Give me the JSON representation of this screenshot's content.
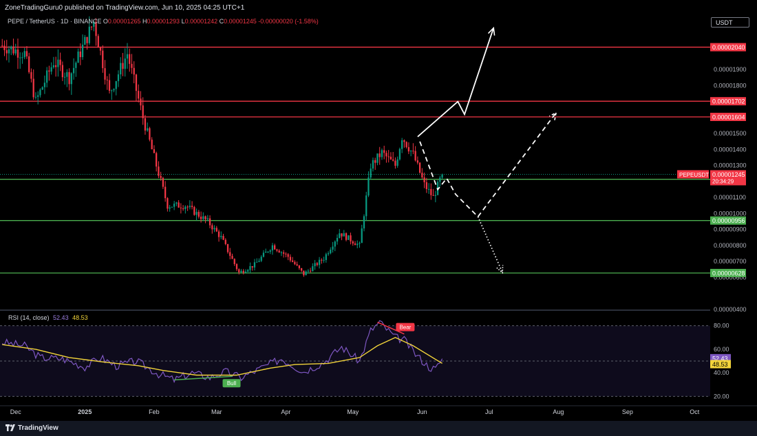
{
  "header": {
    "published_text": "ZoneTradingGuru0 published on TradingView.com, Jun 10, 2025 04:25 UTC+1"
  },
  "symbol": {
    "name": "PEPE / TetherUS · 1D · BINANCE",
    "o_label": "O",
    "o_value": "0.00001265",
    "h_label": "H",
    "h_value": "0.00001293",
    "l_label": "L",
    "l_value": "0.00001242",
    "c_label": "C",
    "c_value": "0.00001245",
    "change": "-0.00000020 (-1.58%)"
  },
  "currency_button": "USDT",
  "rsi": {
    "title": "RSI (14, close)",
    "value": "52.43",
    "ma_value": "48.53",
    "bull_label": "Bull",
    "bear_label": "Bear"
  },
  "footer": {
    "brand": "TradingView"
  },
  "colors": {
    "bg": "#000000",
    "up": "#089981",
    "down": "#f23645",
    "resistance": "#f23645",
    "support": "#4caf50",
    "rsi_line": "#7e57c2",
    "rsi_ma": "#f2d43a",
    "text": "#d1d4dc"
  },
  "chart_data": {
    "type": "candlestick",
    "y_axis": {
      "min": 4e-06,
      "max": 2.15e-05,
      "tick_values": [
        1.9e-05,
        1.8e-05,
        1.5e-05,
        1.4e-05,
        1.3e-05,
        1.1e-05,
        1e-05,
        9e-06,
        8e-06,
        7e-06,
        6e-06,
        4e-06
      ],
      "tick_labels": [
        "0.00001900",
        "0.00001800",
        "0.00001500",
        "0.00001400",
        "0.00001300",
        "0.00001100",
        "0.00001000",
        "0.00000900",
        "0.00000800",
        "0.00000700",
        "0.00000600",
        "0.00000400"
      ]
    },
    "x_axis": {
      "labels": [
        "Dec",
        "2025",
        "Feb",
        "Mar",
        "Apr",
        "May",
        "Jun",
        "Jul",
        "Aug",
        "Sep",
        "Oct"
      ],
      "dates": [
        "2024-12-01",
        "2025-01-01",
        "2025-02-01",
        "2025-03-01",
        "2025-04-01",
        "2025-05-01",
        "2025-06-01",
        "2025-07-01",
        "2025-08-01",
        "2025-09-01",
        "2025-10-01"
      ],
      "range": [
        "2024-11-24",
        "2025-10-08"
      ]
    },
    "levels": [
      {
        "kind": "resistance",
        "value": 2.04e-05,
        "label": "0.00002040"
      },
      {
        "kind": "resistance",
        "value": 1.702e-05,
        "label": "0.00001702"
      },
      {
        "kind": "resistance",
        "value": 1.604e-05,
        "label": "0.00001604"
      },
      {
        "kind": "support",
        "value": 1.214e-05,
        "label": "0.00001214"
      },
      {
        "kind": "support",
        "value": 9.56e-06,
        "label": "0.00000956"
      },
      {
        "kind": "support",
        "value": 6.28e-06,
        "label": "0.00000628"
      }
    ],
    "last_price": {
      "value": 1.245e-05,
      "label": "0.00001245",
      "symbol_tag": "PEPEUSDT",
      "countdown": "20:34:29"
    },
    "price_path_anchors": [
      {
        "date": "2024-11-25",
        "close": 2.05e-05
      },
      {
        "date": "2024-12-05",
        "close": 2e-05
      },
      {
        "date": "2024-12-10",
        "close": 1.7e-05
      },
      {
        "date": "2024-12-18",
        "close": 1.95e-05
      },
      {
        "date": "2024-12-25",
        "close": 1.85e-05
      },
      {
        "date": "2025-01-05",
        "close": 2.2e-05
      },
      {
        "date": "2025-01-12",
        "close": 1.75e-05
      },
      {
        "date": "2025-01-20",
        "close": 2e-05
      },
      {
        "date": "2025-01-27",
        "close": 1.6e-05
      },
      {
        "date": "2025-02-03",
        "close": 1.25e-05
      },
      {
        "date": "2025-02-07",
        "close": 1.05e-05
      },
      {
        "date": "2025-02-15",
        "close": 1.05e-05
      },
      {
        "date": "2025-02-25",
        "close": 9.5e-06
      },
      {
        "date": "2025-03-03",
        "close": 8.5e-06
      },
      {
        "date": "2025-03-11",
        "close": 6.3e-06
      },
      {
        "date": "2025-03-18",
        "close": 6.8e-06
      },
      {
        "date": "2025-03-26",
        "close": 8e-06
      },
      {
        "date": "2025-04-02",
        "close": 7.3e-06
      },
      {
        "date": "2025-04-09",
        "close": 6.2e-06
      },
      {
        "date": "2025-04-18",
        "close": 7.2e-06
      },
      {
        "date": "2025-04-25",
        "close": 8.8e-06
      },
      {
        "date": "2025-05-04",
        "close": 8e-06
      },
      {
        "date": "2025-05-09",
        "close": 1.3e-05
      },
      {
        "date": "2025-05-14",
        "close": 1.38e-05
      },
      {
        "date": "2025-05-20",
        "close": 1.3e-05
      },
      {
        "date": "2025-05-23",
        "close": 1.48e-05
      },
      {
        "date": "2025-05-28",
        "close": 1.37e-05
      },
      {
        "date": "2025-06-02",
        "close": 1.18e-05
      },
      {
        "date": "2025-06-06",
        "close": 1.1e-05
      },
      {
        "date": "2025-06-10",
        "close": 1.245e-05
      }
    ],
    "projection_solid": [
      {
        "date": "2025-05-30",
        "value": 1.48e-05
      },
      {
        "date": "2025-06-17",
        "value": 1.7e-05
      },
      {
        "date": "2025-06-20",
        "value": 1.62e-05
      },
      {
        "date": "2025-07-03",
        "value": 2.16e-05
      }
    ],
    "projection_dashed": [
      {
        "date": "2025-05-31",
        "value": 1.45e-05
      },
      {
        "date": "2025-06-08",
        "value": 1.15e-05
      },
      {
        "date": "2025-06-12",
        "value": 1.22e-05
      },
      {
        "date": "2025-06-16",
        "value": 1.12e-05
      },
      {
        "date": "2025-06-26",
        "value": 9.8e-06
      },
      {
        "date": "2025-07-31",
        "value": 1.63e-05
      }
    ],
    "projection_dotted": [
      {
        "date": "2025-06-26",
        "value": 9.8e-06
      },
      {
        "date": "2025-07-07",
        "value": 6.3e-06
      }
    ],
    "rsi_panel": {
      "ticks": [
        80,
        60,
        40,
        20
      ],
      "tick_labels": [
        "80.00",
        "60.00",
        "40.00",
        "20.00"
      ],
      "ylim": [
        12,
        88
      ],
      "rsi_anchors": [
        {
          "date": "2024-11-25",
          "value": 66
        },
        {
          "date": "2024-12-05",
          "value": 63
        },
        {
          "date": "2024-12-12",
          "value": 53
        },
        {
          "date": "2024-12-22",
          "value": 52
        },
        {
          "date": "2025-01-01",
          "value": 45
        },
        {
          "date": "2025-01-08",
          "value": 53
        },
        {
          "date": "2025-01-15",
          "value": 46
        },
        {
          "date": "2025-01-24",
          "value": 50
        },
        {
          "date": "2025-02-03",
          "value": 39
        },
        {
          "date": "2025-02-10",
          "value": 34
        },
        {
          "date": "2025-02-18",
          "value": 40
        },
        {
          "date": "2025-02-26",
          "value": 36
        },
        {
          "date": "2025-03-05",
          "value": 41
        },
        {
          "date": "2025-03-12",
          "value": 36
        },
        {
          "date": "2025-03-22",
          "value": 45
        },
        {
          "date": "2025-03-30",
          "value": 52
        },
        {
          "date": "2025-04-09",
          "value": 41
        },
        {
          "date": "2025-04-18",
          "value": 49
        },
        {
          "date": "2025-04-26",
          "value": 62
        },
        {
          "date": "2025-05-04",
          "value": 50
        },
        {
          "date": "2025-05-09",
          "value": 76
        },
        {
          "date": "2025-05-13",
          "value": 83
        },
        {
          "date": "2025-05-20",
          "value": 70
        },
        {
          "date": "2025-05-24",
          "value": 68
        },
        {
          "date": "2025-05-29",
          "value": 56
        },
        {
          "date": "2025-06-04",
          "value": 45
        },
        {
          "date": "2025-06-07",
          "value": 43
        },
        {
          "date": "2025-06-10",
          "value": 52
        }
      ],
      "ma_anchors": [
        {
          "date": "2024-11-25",
          "value": 64
        },
        {
          "date": "2024-12-10",
          "value": 60
        },
        {
          "date": "2024-12-25",
          "value": 53
        },
        {
          "date": "2025-01-10",
          "value": 49
        },
        {
          "date": "2025-01-25",
          "value": 46
        },
        {
          "date": "2025-02-05",
          "value": 42
        },
        {
          "date": "2025-02-20",
          "value": 38
        },
        {
          "date": "2025-03-10",
          "value": 38
        },
        {
          "date": "2025-03-25",
          "value": 44
        },
        {
          "date": "2025-04-05",
          "value": 47
        },
        {
          "date": "2025-04-20",
          "value": 48
        },
        {
          "date": "2025-05-04",
          "value": 53
        },
        {
          "date": "2025-05-12",
          "value": 63
        },
        {
          "date": "2025-05-20",
          "value": 70
        },
        {
          "date": "2025-05-28",
          "value": 63
        },
        {
          "date": "2025-06-10",
          "value": 48
        }
      ],
      "bull_divergence": [
        {
          "date": "2025-02-10",
          "value": 34
        },
        {
          "date": "2025-03-08",
          "value": 37
        }
      ],
      "bear_divergence": [
        {
          "date": "2025-05-12",
          "value": 83
        },
        {
          "date": "2025-05-24",
          "value": 73
        }
      ]
    }
  }
}
